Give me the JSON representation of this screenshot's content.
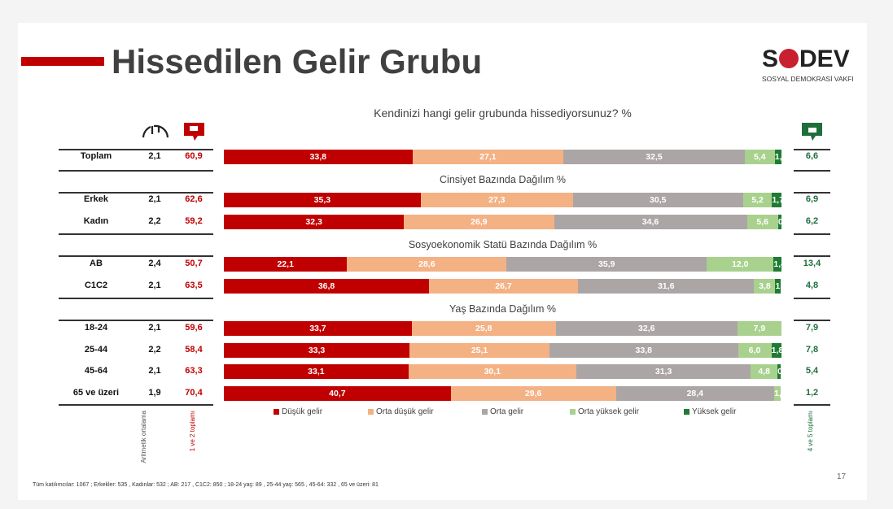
{
  "title": "Hissedilen Gelir Grubu",
  "logo": {
    "name": "SODEV",
    "subtitle": "SOSYAL DEMOKRASİ VAKFI"
  },
  "question": "Kendinizi hangi gelir grubunda hissediyorsunuz? %",
  "column_labels": {
    "mean": "Aritmetik ortalama",
    "neg": "1 ve 2 toplamı",
    "pos": "4 ve 5 toplamı"
  },
  "icons": {
    "mean": "gauge-icon",
    "neg": "thumbs-down-icon",
    "pos": "thumbs-up-icon"
  },
  "colors": {
    "dusuk": "#c00000",
    "orta_dusuk": "#f4b183",
    "orta": "#aca5a5",
    "orta_yuksek": "#a9d18e",
    "yuksek": "#1e7b34"
  },
  "chart_data": {
    "type": "bar",
    "stacked": true,
    "orientation": "horizontal",
    "unit": "%",
    "legend_position": "bottom",
    "series_names": [
      "Düşük gelir",
      "Orta düşük gelir",
      "Orta gelir",
      "Orta yüksek gelir",
      "Yüksek gelir"
    ],
    "group_titles": [
      "",
      "Cinsiyet Bazında Dağılım %",
      "Sosyoekonomik Statü Bazında Dağılım %",
      "Yaş Bazında Dağılım %"
    ],
    "rows": [
      {
        "group": 0,
        "label": "Toplam",
        "mean": "2,1",
        "neg": "60,9",
        "pos": "6,6",
        "values": [
          33.8,
          27.1,
          32.5,
          5.4,
          1.2
        ]
      },
      {
        "group": 1,
        "label": "Erkek",
        "mean": "2,1",
        "neg": "62,6",
        "pos": "6,9",
        "values": [
          35.3,
          27.3,
          30.5,
          5.2,
          1.7
        ]
      },
      {
        "group": 1,
        "label": "Kadın",
        "mean": "2,2",
        "neg": "59,2",
        "pos": "6,2",
        "values": [
          32.3,
          26.9,
          34.6,
          5.6,
          0.6
        ]
      },
      {
        "group": 2,
        "label": "AB",
        "mean": "2,4",
        "neg": "50,7",
        "pos": "13,4",
        "values": [
          22.1,
          28.6,
          35.9,
          12.0,
          1.4
        ]
      },
      {
        "group": 2,
        "label": "C1C2",
        "mean": "2,1",
        "neg": "63,5",
        "pos": "4,8",
        "values": [
          36.8,
          26.7,
          31.6,
          3.8,
          1.0
        ]
      },
      {
        "group": 3,
        "label": "18-24",
        "mean": "2,1",
        "neg": "59,6",
        "pos": "7,9",
        "values": [
          33.7,
          25.8,
          32.6,
          7.9,
          0
        ]
      },
      {
        "group": 3,
        "label": "25-44",
        "mean": "2,2",
        "neg": "58,4",
        "pos": "7,8",
        "values": [
          33.3,
          25.1,
          33.8,
          6.0,
          1.8
        ]
      },
      {
        "group": 3,
        "label": "45-64",
        "mean": "2,1",
        "neg": "63,3",
        "pos": "5,4",
        "values": [
          33.1,
          30.1,
          31.3,
          4.8,
          0.6
        ]
      },
      {
        "group": 3,
        "label": "65 ve üzeri",
        "mean": "1,9",
        "neg": "70,4",
        "pos": "1,2",
        "values": [
          40.7,
          29.6,
          28.4,
          1.2,
          0
        ]
      }
    ]
  },
  "footer": "Tüm katılımcılar: 1067 ; Erkekler: 535 , Kadınlar: 532 ; AB: 217 , C1C2: 850 ;  18-24 yaş: 89 , 25-44 yaş: 565 , 45-64: 332 , 65 ve üzeri: 81",
  "page_number": "17"
}
